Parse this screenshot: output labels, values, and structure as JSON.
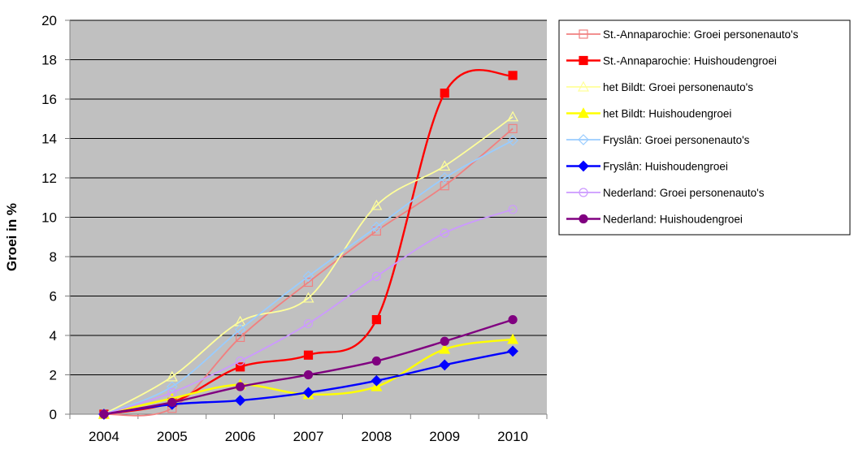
{
  "chart_data": {
    "type": "line",
    "title": "",
    "xlabel": "",
    "ylabel": "Groei in %",
    "categories": [
      "2004",
      "2005",
      "2006",
      "2007",
      "2008",
      "2009",
      "2010"
    ],
    "ylim": [
      0,
      20
    ],
    "yticks": [
      "0",
      "2",
      "4",
      "6",
      "8",
      "10",
      "12",
      "14",
      "16",
      "18",
      "20"
    ],
    "grid": true,
    "legend_position": "right",
    "plot_background": "#C0C0C0",
    "series": [
      {
        "name": "St.-Annaparochie:  Groei personenauto's",
        "color": "#F08080",
        "marker": "square-open",
        "values": [
          0,
          0.3,
          3.9,
          6.7,
          9.3,
          11.6,
          14.5
        ]
      },
      {
        "name": "St.-Annaparochie:  Huishoudengroei",
        "color": "#FF0000",
        "marker": "square",
        "values": [
          0,
          0.6,
          2.4,
          3.0,
          4.8,
          16.3,
          17.2
        ]
      },
      {
        "name": "het Bildt:  Groei personenauto's",
        "color": "#FFFF99",
        "marker": "triangle-open",
        "values": [
          0,
          1.9,
          4.7,
          5.9,
          10.6,
          12.6,
          15.1
        ]
      },
      {
        "name": "het Bildt:  Huishoudengroei",
        "color": "#FFFF00",
        "marker": "triangle",
        "values": [
          0,
          0.8,
          1.5,
          1.0,
          1.4,
          3.3,
          3.8
        ]
      },
      {
        "name": "Fryslân:  Groei personenauto's",
        "color": "#99CCFF",
        "marker": "diamond-open",
        "values": [
          0,
          1.4,
          4.3,
          7.0,
          9.5,
          12.0,
          13.9
        ]
      },
      {
        "name": "Fryslân:  Huishoudengroei",
        "color": "#0000FF",
        "marker": "diamond",
        "values": [
          0,
          0.5,
          0.7,
          1.1,
          1.7,
          2.5,
          3.2
        ]
      },
      {
        "name": "Nederland:  Groei personenauto's",
        "color": "#CC99FF",
        "marker": "circle-open",
        "values": [
          0,
          1.1,
          2.7,
          4.6,
          7.0,
          9.2,
          10.4
        ]
      },
      {
        "name": "Nederland:  Huishoudengroei",
        "color": "#800080",
        "marker": "circle",
        "values": [
          0,
          0.6,
          1.4,
          2.0,
          2.7,
          3.7,
          4.8
        ]
      }
    ]
  }
}
